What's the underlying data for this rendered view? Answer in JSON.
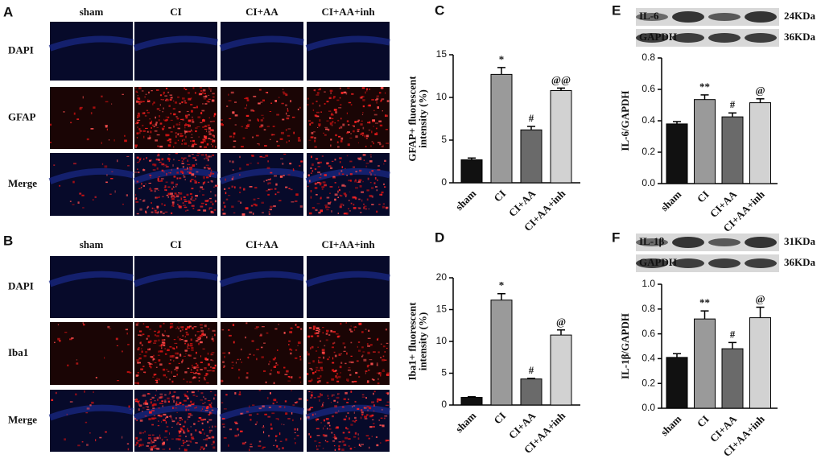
{
  "image_panels": [
    {
      "panel_label": "A",
      "columns": [
        "sham",
        "CI",
        "CI+AA",
        "CI+AA+inh"
      ],
      "rows": [
        "DAPI",
        "GFAP",
        "Merge"
      ]
    },
    {
      "panel_label": "B",
      "columns": [
        "sham",
        "CI",
        "CI+AA",
        "CI+AA+inh"
      ],
      "rows": [
        "DAPI",
        "Iba1",
        "Merge"
      ]
    }
  ],
  "chart_data": [
    {
      "type": "bar",
      "panel_label": "C",
      "ylabel": [
        "GFAP+ fluorescent",
        "intensity (%)"
      ],
      "categories": [
        "sham",
        "CI",
        "CI+AA",
        "CI+AA+inh"
      ],
      "values": [
        2.7,
        12.7,
        6.2,
        10.8
      ],
      "errors": [
        0.2,
        0.8,
        0.4,
        0.3
      ],
      "annotations": [
        null,
        "*",
        "#",
        "@@"
      ],
      "colors": [
        "#111111",
        "#9a9a9a",
        "#6a6a6a",
        "#d2d2d2"
      ],
      "ylim": [
        0,
        15
      ],
      "yticks": [
        0,
        5,
        10,
        15
      ]
    },
    {
      "type": "bar",
      "panel_label": "D",
      "ylabel": [
        "Iba1+ fluorescent",
        "intensity (%)"
      ],
      "categories": [
        "sham",
        "CI",
        "CI+AA",
        "CI+AA+inh"
      ],
      "values": [
        1.2,
        16.5,
        4.1,
        11.0
      ],
      "errors": [
        0.1,
        1.0,
        0.1,
        0.8
      ],
      "annotations": [
        null,
        "*",
        "#",
        "@"
      ],
      "colors": [
        "#111111",
        "#9a9a9a",
        "#6a6a6a",
        "#d2d2d2"
      ],
      "ylim": [
        0,
        20
      ],
      "yticks": [
        0,
        5,
        10,
        15,
        20
      ]
    },
    {
      "type": "bar",
      "panel_label": "E",
      "ylabel": [
        "IL-6/GAPDH"
      ],
      "blot": [
        {
          "label": "IL-6",
          "size": "24KDa"
        },
        {
          "label": "GAPDH",
          "size": "36KDa"
        }
      ],
      "categories": [
        "sham",
        "CI",
        "CI+AA",
        "CI+AA+inh"
      ],
      "values": [
        0.38,
        0.535,
        0.425,
        0.515
      ],
      "errors": [
        0.015,
        0.03,
        0.025,
        0.025
      ],
      "annotations": [
        null,
        "**",
        "#",
        "@"
      ],
      "colors": [
        "#111111",
        "#9a9a9a",
        "#6a6a6a",
        "#d2d2d2"
      ],
      "ylim": [
        0,
        0.8
      ],
      "yticks": [
        {
          "value": 0,
          "label": "0.0"
        },
        0.2,
        0.4,
        0.6,
        0.8
      ]
    },
    {
      "type": "bar",
      "panel_label": "F",
      "ylabel": [
        "IL-1β/GAPDH"
      ],
      "blot": [
        {
          "label": "IL-1β",
          "size": "31KDa"
        },
        {
          "label": "GAPDH",
          "size": "36KDa"
        }
      ],
      "categories": [
        "sham",
        "CI",
        "CI+AA",
        "CI+AA+inh"
      ],
      "values": [
        0.41,
        0.72,
        0.48,
        0.73
      ],
      "errors": [
        0.03,
        0.065,
        0.05,
        0.085
      ],
      "annotations": [
        null,
        "**",
        "#",
        "@"
      ],
      "colors": [
        "#111111",
        "#9a9a9a",
        "#6a6a6a",
        "#d2d2d2"
      ],
      "ylim": [
        0,
        1.0
      ],
      "yticks": [
        {
          "value": 0,
          "label": "0.0"
        },
        0.2,
        0.4,
        0.6,
        0.8,
        {
          "value": 1,
          "label": "1.0"
        }
      ]
    }
  ]
}
